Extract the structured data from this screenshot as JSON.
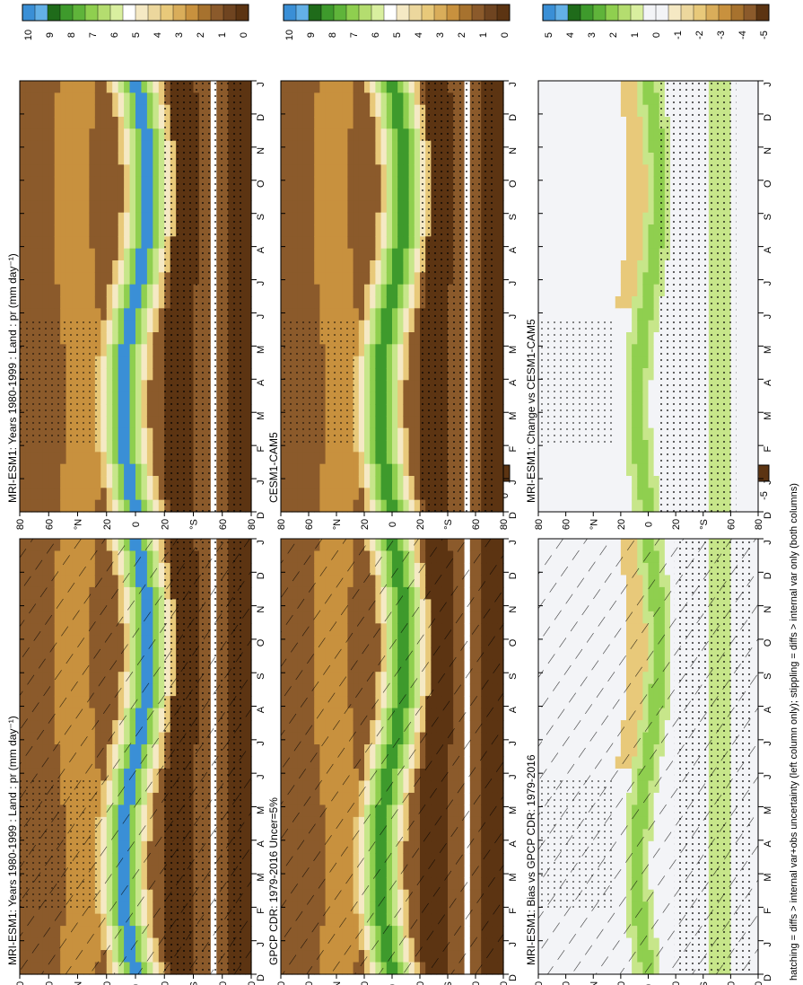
{
  "figure": {
    "footnote": "hatching = diffs > internal var+obs uncertainty (left column only); stippling = diffs > internal var only (both columns)"
  },
  "months": [
    "D",
    "J",
    "F",
    "M",
    "A",
    "M",
    "J",
    "J",
    "A",
    "S",
    "O",
    "N",
    "D",
    "J"
  ],
  "lat_ticks": [
    "80",
    "60",
    "°N",
    "20",
    "0",
    "20",
    "°S",
    "60",
    "80"
  ],
  "colors": {
    "brown_dark": "#5c3412",
    "brown": "#8b5a2b",
    "tan": "#c8913e",
    "light_tan": "#e8c97a",
    "cream": "#f5e9c4",
    "white": "#ffffff",
    "light_green": "#c7e68a",
    "green": "#8fcf4f",
    "dark_green": "#3e9a2c",
    "blue": "#3a8fd6",
    "diff_bg": "#f3f4f7"
  },
  "chart_data": [
    {
      "id": "model",
      "type": "heatmap",
      "title": "MRI-ESM1: Years 1980-1999 : Land : pr (mm day⁻¹)",
      "colorbar": {
        "ticks": [
          "10",
          "9",
          "8",
          "7",
          "6",
          "5",
          "4",
          "3",
          "2",
          "1",
          "0"
        ],
        "colors": [
          "#3a8fd6",
          "#63b0e6",
          "#1f6b1a",
          "#3e9a2c",
          "#5fb43a",
          "#8fcf4f",
          "#b4dd6f",
          "#d9ef9f",
          "#ffffff",
          "#f5e9c4",
          "#ecd79d",
          "#e8c97a",
          "#d9ad5a",
          "#c8913e",
          "#a7722e",
          "#8b5a2b",
          "#6f4420",
          "#5c3412"
        ]
      },
      "hatching": true,
      "stippling": true
    },
    {
      "id": "model2",
      "type": "heatmap",
      "title": "MRI-ESM1: Years 1980-1999 : Land : pr (mm day⁻¹)",
      "colorbar": {
        "ticks": [
          "10",
          "9",
          "8",
          "7",
          "6",
          "5",
          "4",
          "3",
          "2",
          "1",
          "0"
        ],
        "colors": [
          "#3a8fd6",
          "#63b0e6",
          "#1f6b1a",
          "#3e9a2c",
          "#5fb43a",
          "#8fcf4f",
          "#b4dd6f",
          "#d9ef9f",
          "#ffffff",
          "#f5e9c4",
          "#ecd79d",
          "#e8c97a",
          "#d9ad5a",
          "#c8913e",
          "#a7722e",
          "#8b5a2b",
          "#6f4420",
          "#5c3412"
        ]
      },
      "hatching": false,
      "stippling": true
    },
    {
      "id": "obs",
      "type": "heatmap",
      "title": "GPCP CDR: 1979-2016 Uncer=5%",
      "colorbar": {
        "ticks": [
          "10",
          "9",
          "8",
          "7",
          "6",
          "5",
          "4",
          "3",
          "2",
          "1",
          "0"
        ],
        "colors": [
          "#3a8fd6",
          "#63b0e6",
          "#1f6b1a",
          "#3e9a2c",
          "#5fb43a",
          "#8fcf4f",
          "#b4dd6f",
          "#d9ef9f",
          "#ffffff",
          "#f5e9c4",
          "#ecd79d",
          "#e8c97a",
          "#d9ad5a",
          "#c8913e",
          "#a7722e",
          "#8b5a2b",
          "#6f4420",
          "#5c3412"
        ]
      },
      "hatching": true,
      "stippling": false
    },
    {
      "id": "ref",
      "type": "heatmap",
      "title": "CESM1-CAM5",
      "colorbar": {
        "ticks": [
          "10",
          "9",
          "8",
          "7",
          "6",
          "5",
          "4",
          "3",
          "2",
          "1",
          "0"
        ],
        "colors": [
          "#3a8fd6",
          "#63b0e6",
          "#1f6b1a",
          "#3e9a2c",
          "#5fb43a",
          "#8fcf4f",
          "#b4dd6f",
          "#d9ef9f",
          "#ffffff",
          "#f5e9c4",
          "#ecd79d",
          "#e8c97a",
          "#d9ad5a",
          "#c8913e",
          "#a7722e",
          "#8b5a2b",
          "#6f4420",
          "#5c3412"
        ]
      },
      "hatching": false,
      "stippling": true
    },
    {
      "id": "bias",
      "type": "heatmap",
      "title": "MRI-ESM1: Bias vs GPCP CDR: 1979-2016",
      "colorbar": {
        "ticks": [
          "5",
          "4",
          "3",
          "2",
          "1",
          "0",
          "-1",
          "-2",
          "-3",
          "-4",
          "-5"
        ],
        "colors": [
          "#3a8fd6",
          "#63b0e6",
          "#1f6b1a",
          "#3e9a2c",
          "#5fb43a",
          "#8fcf4f",
          "#b4dd6f",
          "#d9ef9f",
          "#f3f4f7",
          "#f3f4f7",
          "#f5e9c4",
          "#ecd79d",
          "#e8c97a",
          "#d9ad5a",
          "#c8913e",
          "#a7722e",
          "#8b5a2b",
          "#5c3412"
        ]
      },
      "hatching": true,
      "stippling": true
    },
    {
      "id": "change",
      "type": "heatmap",
      "title": "MRI-ESM1: Change vs CESM1-CAM5",
      "colorbar": {
        "ticks": [
          "5",
          "4",
          "3",
          "2",
          "1",
          "0",
          "-1",
          "-2",
          "-3",
          "-4",
          "-5"
        ],
        "colors": [
          "#3a8fd6",
          "#63b0e6",
          "#1f6b1a",
          "#3e9a2c",
          "#5fb43a",
          "#8fcf4f",
          "#b4dd6f",
          "#d9ef9f",
          "#f3f4f7",
          "#f3f4f7",
          "#f5e9c4",
          "#ecd79d",
          "#e8c97a",
          "#d9ad5a",
          "#c8913e",
          "#a7722e",
          "#8b5a2b",
          "#5c3412"
        ]
      },
      "hatching": false,
      "stippling": true
    }
  ]
}
